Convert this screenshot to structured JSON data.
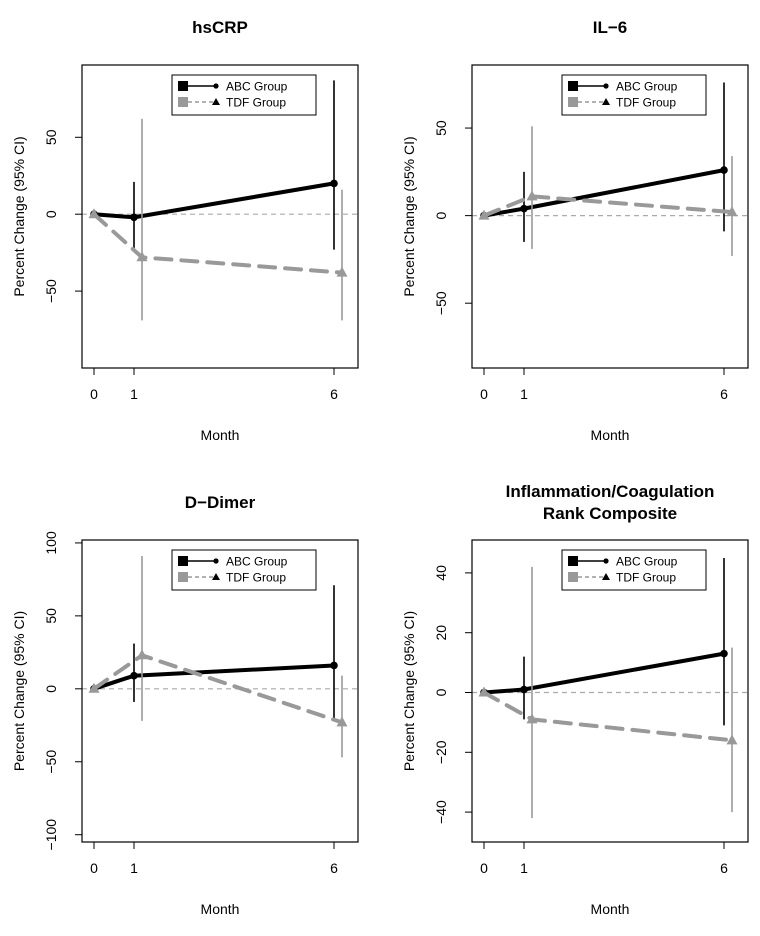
{
  "colors": {
    "abc": "#000000",
    "tdf": "#999999",
    "ref_line": "#aaaaaa",
    "axis": "#000000"
  },
  "chart_data": [
    {
      "type": "line",
      "title": "hsCRP",
      "xlabel": "Month",
      "ylabel": "Percent Change (95% CI)",
      "x_ticks": [
        0,
        1,
        6
      ],
      "y_ticks": [
        -50,
        0,
        50
      ],
      "xlim": [
        -0.3,
        6.6
      ],
      "ylim": [
        -100,
        97
      ],
      "reference_line": 0,
      "grid": false,
      "legend_position": "top-right",
      "series": [
        {
          "name": "ABC Group",
          "marker": "circle",
          "line": "solid",
          "points": [
            {
              "x": 0,
              "y": 0
            },
            {
              "x": 1,
              "y": -2,
              "lo": -22,
              "hi": 21
            },
            {
              "x": 6,
              "y": 20,
              "lo": -23,
              "hi": 87
            }
          ]
        },
        {
          "name": "TDF Group",
          "marker": "triangle",
          "line": "dashed",
          "points": [
            {
              "x": 0,
              "y": 0
            },
            {
              "x": 1.2,
              "y": -28,
              "lo": -69,
              "hi": 62
            },
            {
              "x": 6.2,
              "y": -38,
              "lo": -69,
              "hi": 16
            }
          ]
        }
      ]
    },
    {
      "type": "line",
      "title": "IL−6",
      "xlabel": "Month",
      "ylabel": "Percent Change (95% CI)",
      "x_ticks": [
        0,
        1,
        6
      ],
      "y_ticks": [
        -50,
        0,
        50
      ],
      "xlim": [
        -0.3,
        6.6
      ],
      "ylim": [
        -87,
        86
      ],
      "reference_line": 0,
      "grid": false,
      "legend_position": "top-right",
      "series": [
        {
          "name": "ABC Group",
          "marker": "circle",
          "line": "solid",
          "points": [
            {
              "x": 0,
              "y": 0
            },
            {
              "x": 1,
              "y": 4,
              "lo": -15,
              "hi": 25
            },
            {
              "x": 6,
              "y": 26,
              "lo": -9,
              "hi": 76
            }
          ]
        },
        {
          "name": "TDF Group",
          "marker": "triangle",
          "line": "dashed",
          "points": [
            {
              "x": 0,
              "y": 0
            },
            {
              "x": 1.2,
              "y": 11,
              "lo": -19,
              "hi": 51
            },
            {
              "x": 6.2,
              "y": 2,
              "lo": -23,
              "hi": 34
            }
          ]
        }
      ]
    },
    {
      "type": "line",
      "title": "D−Dimer",
      "xlabel": "Month",
      "ylabel": "Percent Change (95% CI)",
      "x_ticks": [
        0,
        1,
        6
      ],
      "y_ticks": [
        -100,
        -50,
        0,
        50,
        100
      ],
      "xlim": [
        -0.3,
        6.6
      ],
      "ylim": [
        -105,
        102
      ],
      "reference_line": 0,
      "grid": false,
      "legend_position": "top-right",
      "series": [
        {
          "name": "ABC Group",
          "marker": "circle",
          "line": "solid",
          "points": [
            {
              "x": 0,
              "y": 0
            },
            {
              "x": 1,
              "y": 9,
              "lo": -9,
              "hi": 31
            },
            {
              "x": 6,
              "y": 16,
              "lo": -20,
              "hi": 71
            }
          ]
        },
        {
          "name": "TDF Group",
          "marker": "triangle",
          "line": "dashed",
          "points": [
            {
              "x": 0,
              "y": 0
            },
            {
              "x": 1.2,
              "y": 23,
              "lo": -22,
              "hi": 91
            },
            {
              "x": 6.2,
              "y": -23,
              "lo": -47,
              "hi": 9
            }
          ]
        }
      ]
    },
    {
      "type": "line",
      "title": "Inflammation/Coagulation\nRank Composite",
      "xlabel": "Month",
      "ylabel": "Percent Change (95% CI)",
      "x_ticks": [
        0,
        1,
        6
      ],
      "y_ticks": [
        -40,
        -20,
        0,
        20,
        40
      ],
      "xlim": [
        -0.3,
        6.6
      ],
      "ylim": [
        -50,
        51
      ],
      "reference_line": 0,
      "grid": false,
      "legend_position": "top-right",
      "series": [
        {
          "name": "ABC Group",
          "marker": "circle",
          "line": "solid",
          "points": [
            {
              "x": 0,
              "y": 0
            },
            {
              "x": 1,
              "y": 1,
              "lo": -9,
              "hi": 12
            },
            {
              "x": 6,
              "y": 13,
              "lo": -11,
              "hi": 45
            }
          ]
        },
        {
          "name": "TDF Group",
          "marker": "triangle",
          "line": "dashed",
          "points": [
            {
              "x": 0,
              "y": 0
            },
            {
              "x": 1.2,
              "y": -9,
              "lo": -42,
              "hi": 42
            },
            {
              "x": 6.2,
              "y": -16,
              "lo": -40,
              "hi": 15
            }
          ]
        }
      ]
    }
  ]
}
